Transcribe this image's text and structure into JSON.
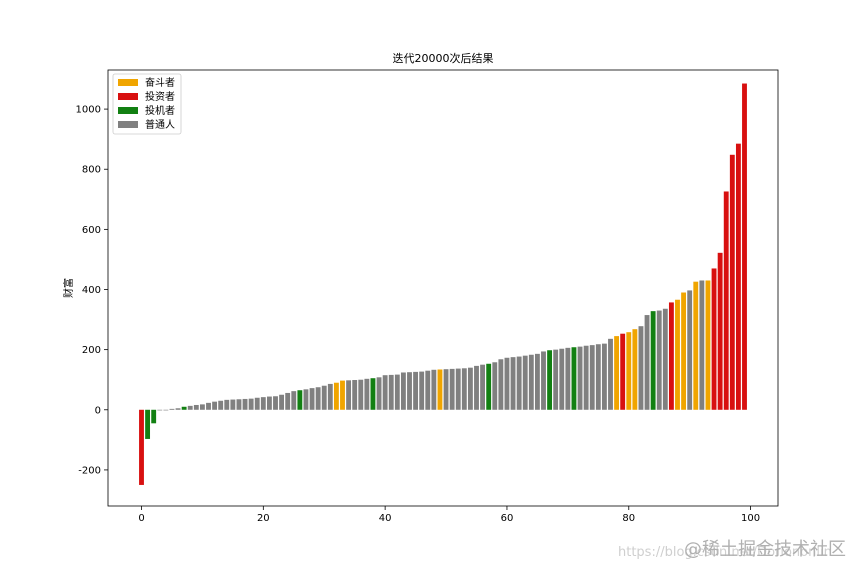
{
  "chart_data": {
    "type": "bar",
    "title": "迭代20000次后结果",
    "ylabel": "财富",
    "xlabel": "",
    "xlim": [
      -5.5,
      104.5
    ],
    "ylim": [
      -320,
      1130
    ],
    "xticks": [
      0,
      20,
      40,
      60,
      80,
      100
    ],
    "yticks": [
      -200,
      0,
      200,
      400,
      600,
      800,
      1000
    ],
    "grid": false,
    "legend_position": "upper-left",
    "colors": {
      "striver": "#f0a500",
      "investor": "#d81010",
      "speculator": "#128012",
      "ordinary": "#808080"
    },
    "legend": [
      {
        "key": "striver",
        "label": "奋斗者"
      },
      {
        "key": "investor",
        "label": "投资者"
      },
      {
        "key": "speculator",
        "label": "投机者"
      },
      {
        "key": "ordinary",
        "label": "普通人"
      }
    ],
    "bars": [
      {
        "x": 0,
        "y": -250,
        "group": "investor"
      },
      {
        "x": 1,
        "y": -97,
        "group": "speculator"
      },
      {
        "x": 2,
        "y": -45,
        "group": "speculator"
      },
      {
        "x": 3,
        "y": 0,
        "group": "ordinary"
      },
      {
        "x": 4,
        "y": 0,
        "group": "ordinary"
      },
      {
        "x": 5,
        "y": 3,
        "group": "ordinary"
      },
      {
        "x": 6,
        "y": 5,
        "group": "ordinary"
      },
      {
        "x": 7,
        "y": 10,
        "group": "speculator"
      },
      {
        "x": 8,
        "y": 13,
        "group": "ordinary"
      },
      {
        "x": 9,
        "y": 16,
        "group": "ordinary"
      },
      {
        "x": 10,
        "y": 18,
        "group": "ordinary"
      },
      {
        "x": 11,
        "y": 23,
        "group": "ordinary"
      },
      {
        "x": 12,
        "y": 27,
        "group": "ordinary"
      },
      {
        "x": 13,
        "y": 30,
        "group": "ordinary"
      },
      {
        "x": 14,
        "y": 33,
        "group": "ordinary"
      },
      {
        "x": 15,
        "y": 34,
        "group": "ordinary"
      },
      {
        "x": 16,
        "y": 35,
        "group": "ordinary"
      },
      {
        "x": 17,
        "y": 36,
        "group": "ordinary"
      },
      {
        "x": 18,
        "y": 37,
        "group": "ordinary"
      },
      {
        "x": 19,
        "y": 40,
        "group": "ordinary"
      },
      {
        "x": 20,
        "y": 42,
        "group": "ordinary"
      },
      {
        "x": 21,
        "y": 44,
        "group": "ordinary"
      },
      {
        "x": 22,
        "y": 45,
        "group": "ordinary"
      },
      {
        "x": 23,
        "y": 50,
        "group": "ordinary"
      },
      {
        "x": 24,
        "y": 56,
        "group": "ordinary"
      },
      {
        "x": 25,
        "y": 62,
        "group": "ordinary"
      },
      {
        "x": 26,
        "y": 65,
        "group": "speculator"
      },
      {
        "x": 27,
        "y": 68,
        "group": "ordinary"
      },
      {
        "x": 28,
        "y": 72,
        "group": "ordinary"
      },
      {
        "x": 29,
        "y": 75,
        "group": "ordinary"
      },
      {
        "x": 30,
        "y": 80,
        "group": "ordinary"
      },
      {
        "x": 31,
        "y": 86,
        "group": "ordinary"
      },
      {
        "x": 32,
        "y": 90,
        "group": "striver"
      },
      {
        "x": 33,
        "y": 97,
        "group": "striver"
      },
      {
        "x": 34,
        "y": 98,
        "group": "ordinary"
      },
      {
        "x": 35,
        "y": 99,
        "group": "ordinary"
      },
      {
        "x": 36,
        "y": 100,
        "group": "ordinary"
      },
      {
        "x": 37,
        "y": 103,
        "group": "ordinary"
      },
      {
        "x": 38,
        "y": 105,
        "group": "speculator"
      },
      {
        "x": 39,
        "y": 108,
        "group": "ordinary"
      },
      {
        "x": 40,
        "y": 115,
        "group": "ordinary"
      },
      {
        "x": 41,
        "y": 116,
        "group": "ordinary"
      },
      {
        "x": 42,
        "y": 117,
        "group": "ordinary"
      },
      {
        "x": 43,
        "y": 124,
        "group": "ordinary"
      },
      {
        "x": 44,
        "y": 125,
        "group": "ordinary"
      },
      {
        "x": 45,
        "y": 126,
        "group": "ordinary"
      },
      {
        "x": 46,
        "y": 127,
        "group": "ordinary"
      },
      {
        "x": 47,
        "y": 130,
        "group": "ordinary"
      },
      {
        "x": 48,
        "y": 133,
        "group": "ordinary"
      },
      {
        "x": 49,
        "y": 134,
        "group": "striver"
      },
      {
        "x": 50,
        "y": 135,
        "group": "ordinary"
      },
      {
        "x": 51,
        "y": 136,
        "group": "ordinary"
      },
      {
        "x": 52,
        "y": 137,
        "group": "ordinary"
      },
      {
        "x": 53,
        "y": 138,
        "group": "ordinary"
      },
      {
        "x": 54,
        "y": 140,
        "group": "ordinary"
      },
      {
        "x": 55,
        "y": 146,
        "group": "ordinary"
      },
      {
        "x": 56,
        "y": 150,
        "group": "ordinary"
      },
      {
        "x": 57,
        "y": 153,
        "group": "speculator"
      },
      {
        "x": 58,
        "y": 158,
        "group": "ordinary"
      },
      {
        "x": 59,
        "y": 168,
        "group": "ordinary"
      },
      {
        "x": 60,
        "y": 173,
        "group": "ordinary"
      },
      {
        "x": 61,
        "y": 175,
        "group": "ordinary"
      },
      {
        "x": 62,
        "y": 177,
        "group": "ordinary"
      },
      {
        "x": 63,
        "y": 180,
        "group": "ordinary"
      },
      {
        "x": 64,
        "y": 183,
        "group": "ordinary"
      },
      {
        "x": 65,
        "y": 186,
        "group": "ordinary"
      },
      {
        "x": 66,
        "y": 194,
        "group": "ordinary"
      },
      {
        "x": 67,
        "y": 198,
        "group": "speculator"
      },
      {
        "x": 68,
        "y": 200,
        "group": "ordinary"
      },
      {
        "x": 69,
        "y": 203,
        "group": "ordinary"
      },
      {
        "x": 70,
        "y": 206,
        "group": "ordinary"
      },
      {
        "x": 71,
        "y": 208,
        "group": "speculator"
      },
      {
        "x": 72,
        "y": 210,
        "group": "ordinary"
      },
      {
        "x": 73,
        "y": 213,
        "group": "ordinary"
      },
      {
        "x": 74,
        "y": 215,
        "group": "ordinary"
      },
      {
        "x": 75,
        "y": 218,
        "group": "ordinary"
      },
      {
        "x": 76,
        "y": 220,
        "group": "ordinary"
      },
      {
        "x": 77,
        "y": 236,
        "group": "ordinary"
      },
      {
        "x": 78,
        "y": 245,
        "group": "striver"
      },
      {
        "x": 79,
        "y": 253,
        "group": "investor"
      },
      {
        "x": 80,
        "y": 258,
        "group": "striver"
      },
      {
        "x": 81,
        "y": 268,
        "group": "striver"
      },
      {
        "x": 82,
        "y": 278,
        "group": "ordinary"
      },
      {
        "x": 83,
        "y": 315,
        "group": "ordinary"
      },
      {
        "x": 84,
        "y": 328,
        "group": "speculator"
      },
      {
        "x": 85,
        "y": 330,
        "group": "ordinary"
      },
      {
        "x": 86,
        "y": 336,
        "group": "ordinary"
      },
      {
        "x": 87,
        "y": 357,
        "group": "investor"
      },
      {
        "x": 88,
        "y": 366,
        "group": "striver"
      },
      {
        "x": 89,
        "y": 390,
        "group": "striver"
      },
      {
        "x": 90,
        "y": 397,
        "group": "ordinary"
      },
      {
        "x": 91,
        "y": 426,
        "group": "striver"
      },
      {
        "x": 92,
        "y": 430,
        "group": "ordinary"
      },
      {
        "x": 93,
        "y": 430,
        "group": "striver"
      },
      {
        "x": 94,
        "y": 470,
        "group": "investor"
      },
      {
        "x": 95,
        "y": 522,
        "group": "investor"
      },
      {
        "x": 96,
        "y": 726,
        "group": "investor"
      },
      {
        "x": 97,
        "y": 848,
        "group": "investor"
      },
      {
        "x": 98,
        "y": 885,
        "group": "investor"
      },
      {
        "x": 99,
        "y": 1085,
        "group": "investor"
      }
    ]
  },
  "watermark": {
    "url": "https://blog.csdn.net/Doriononlin",
    "label": "@稀土掘金技术社区"
  }
}
